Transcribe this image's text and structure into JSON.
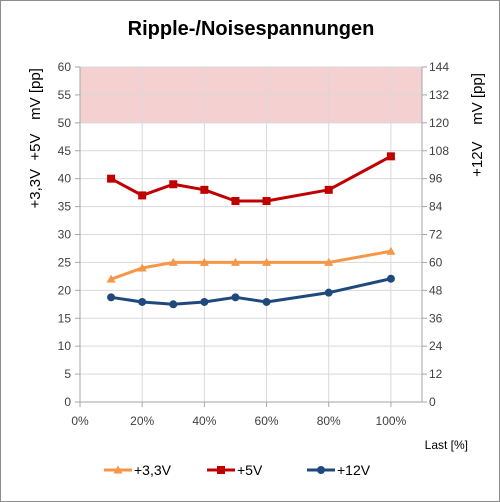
{
  "chart_data": {
    "type": "line",
    "title": "Ripple-/Noisespannungen",
    "xlabel": "Last [%]",
    "ylabel_left_top": "mV [pp]",
    "ylabel_left_bottom": "+3,3V  +5V",
    "ylabel_right": "+12V    mV [pp]",
    "x_ticks": [
      "0%",
      "20%",
      "40%",
      "60%",
      "80%",
      "100%"
    ],
    "xlim": [
      0,
      110
    ],
    "ylim_left": [
      0,
      60
    ],
    "y_ticks_left": [
      "0",
      "5",
      "10",
      "15",
      "20",
      "25",
      "30",
      "35",
      "40",
      "45",
      "50",
      "55",
      "60"
    ],
    "ylim_right": [
      0,
      144
    ],
    "y_ticks_right": [
      "0",
      "12",
      "24",
      "36",
      "48",
      "60",
      "72",
      "84",
      "96",
      "108",
      "120",
      "132",
      "144"
    ],
    "limit_band_left": [
      50,
      60
    ],
    "grid": true,
    "legend_position": "bottom",
    "x": [
      10,
      20,
      30,
      40,
      50,
      60,
      80,
      100
    ],
    "series": [
      {
        "name": "+3,3V",
        "axis": "left",
        "color": "#f79646",
        "marker": "triangle",
        "values": [
          22,
          24,
          25,
          25,
          25,
          25,
          25,
          27
        ]
      },
      {
        "name": "+5V",
        "axis": "left",
        "color": "#c00000",
        "marker": "square",
        "values": [
          40,
          37,
          39,
          38,
          36,
          36,
          38,
          44
        ]
      },
      {
        "name": "+12V",
        "axis": "right",
        "color": "#1f497d",
        "marker": "circle",
        "values": [
          45,
          43,
          42,
          43,
          45,
          43,
          47,
          53
        ]
      }
    ],
    "colors": {
      "band": "#f5d0d0",
      "grid": "#d9d9d9",
      "axis": "#a6a6a6"
    }
  }
}
